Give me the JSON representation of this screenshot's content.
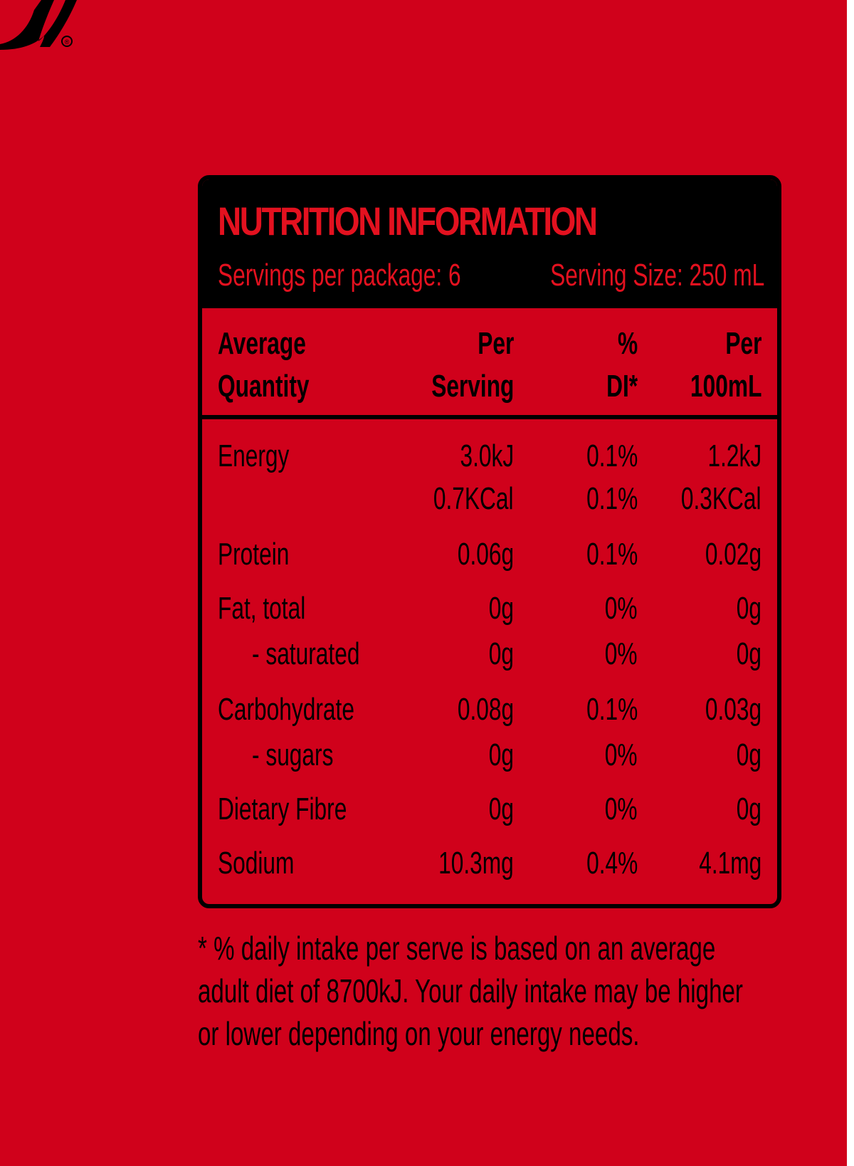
{
  "brand": {
    "logo_text": "a",
    "registered_mark": "®"
  },
  "label": {
    "title": "NUTRITION INFORMATION",
    "servings_per_package": "Servings per package: 6",
    "serving_size": "Serving Size: 250 mL",
    "columns": {
      "name_line1": "Average",
      "name_line2": "Quantity",
      "per_serving_line1": "Per",
      "per_serving_line2": "Serving",
      "di_line1": "%",
      "di_line2": "DI*",
      "per100_line1": "Per",
      "per100_line2": "100mL"
    },
    "rows": [
      {
        "name": "Energy",
        "per_serving": "3.0kJ",
        "di": "0.1%",
        "per_100ml": "1.2kJ"
      },
      {
        "name": "",
        "per_serving": "0.7KCal",
        "di": "0.1%",
        "per_100ml": "0.3KCal"
      },
      {
        "name": "Protein",
        "per_serving": "0.06g",
        "di": "0.1%",
        "per_100ml": "0.02g"
      },
      {
        "name": "Fat, total",
        "per_serving": "0g",
        "di": "0%",
        "per_100ml": "0g"
      },
      {
        "name": "- saturated",
        "per_serving": "0g",
        "di": "0%",
        "per_100ml": "0g"
      },
      {
        "name": "Carbohydrate",
        "per_serving": "0.08g",
        "di": "0.1%",
        "per_100ml": "0.03g"
      },
      {
        "name": "- sugars",
        "per_serving": "0g",
        "di": "0%",
        "per_100ml": "0g"
      },
      {
        "name": "Dietary Fibre",
        "per_serving": "0g",
        "di": "0%",
        "per_100ml": "0g"
      },
      {
        "name": "Sodium",
        "per_serving": "10.3mg",
        "di": "0.4%",
        "per_100ml": "4.1mg"
      }
    ]
  },
  "footnote": {
    "line1": "* % daily intake per serve is based on an average",
    "line2": "adult diet of 8700kJ. Your daily intake may be higher",
    "line3": "or lower depending on your energy needs."
  },
  "colors": {
    "background": "#d0011b",
    "label_title": "#e3111f",
    "ink": "#000000"
  }
}
